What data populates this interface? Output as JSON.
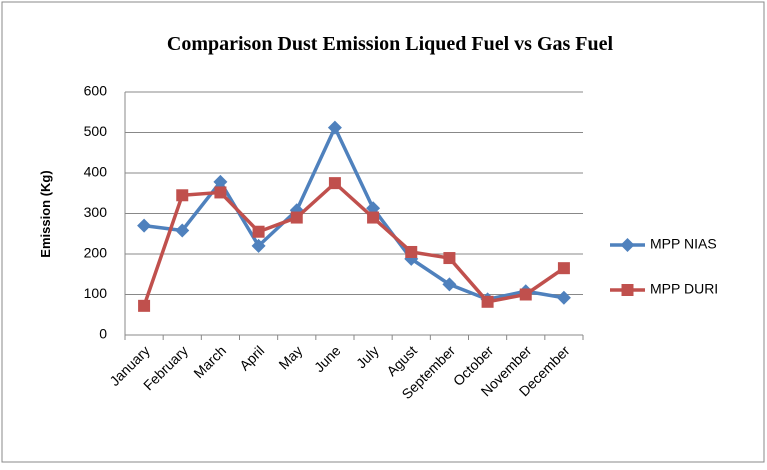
{
  "chart_data": {
    "type": "line",
    "title": "Comparison Dust Emission Liqued Fuel vs Gas Fuel",
    "ylabel": "Emission (Kg)",
    "categories": [
      "January",
      "February",
      "March",
      "April",
      "May",
      "June",
      "July",
      "Agust",
      "September",
      "October",
      "November",
      "December"
    ],
    "series": [
      {
        "name": "MPP NIAS",
        "color": "#4f81bd",
        "marker": "diamond",
        "values": [
          270,
          258,
          378,
          220,
          308,
          512,
          313,
          188,
          125,
          88,
          108,
          92
        ]
      },
      {
        "name": "MPP DURI",
        "color": "#c0504d",
        "marker": "square",
        "values": [
          72,
          345,
          352,
          255,
          290,
          375,
          290,
          205,
          190,
          82,
          100,
          165
        ]
      }
    ],
    "ylim": [
      0,
      600
    ],
    "yticks": [
      0,
      100,
      200,
      300,
      400,
      500,
      600
    ],
    "grid": true,
    "legend": "right"
  }
}
